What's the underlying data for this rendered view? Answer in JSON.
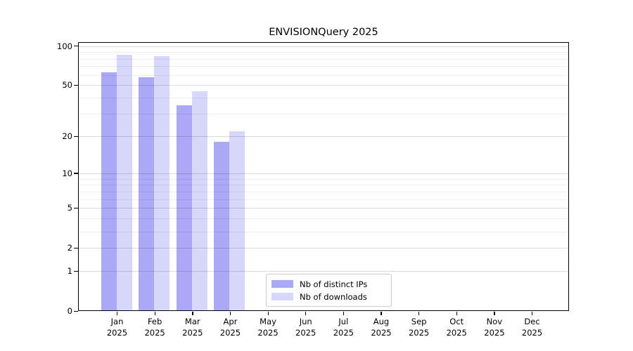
{
  "chart_data": {
    "type": "bar",
    "title": "ENVISIONQuery 2025",
    "categories": [
      {
        "month": "Jan",
        "year": "2025"
      },
      {
        "month": "Feb",
        "year": "2025"
      },
      {
        "month": "Mar",
        "year": "2025"
      },
      {
        "month": "Apr",
        "year": "2025"
      },
      {
        "month": "May",
        "year": "2025"
      },
      {
        "month": "Jun",
        "year": "2025"
      },
      {
        "month": "Jul",
        "year": "2025"
      },
      {
        "month": "Aug",
        "year": "2025"
      },
      {
        "month": "Sep",
        "year": "2025"
      },
      {
        "month": "Oct",
        "year": "2025"
      },
      {
        "month": "Nov",
        "year": "2025"
      },
      {
        "month": "Dec",
        "year": "2025"
      }
    ],
    "series": [
      {
        "name": "Nb of distinct IPs",
        "color": "#a9a9f5",
        "values": [
          63,
          58,
          35,
          18,
          null,
          null,
          null,
          null,
          null,
          null,
          null,
          null
        ]
      },
      {
        "name": "Nb of downloads",
        "color": "#d6d7fa",
        "values": [
          86,
          84,
          45,
          22,
          null,
          null,
          null,
          null,
          null,
          null,
          null,
          null
        ]
      }
    ],
    "xlabel": "",
    "ylabel": "",
    "yscale": "log1p",
    "ylim": [
      0,
      108
    ],
    "yticks": [
      0,
      1,
      2,
      5,
      10,
      20,
      50,
      100
    ],
    "minor_gridlines": [
      3,
      4,
      6,
      7,
      8,
      9,
      30,
      40,
      60,
      70,
      80,
      90
    ],
    "grid": "horizontal, drawn over bars",
    "legend_position": "lower center"
  }
}
